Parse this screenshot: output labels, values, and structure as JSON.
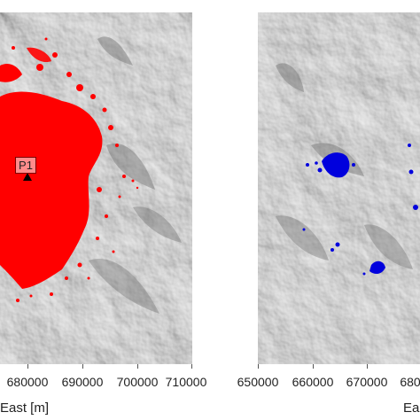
{
  "left_panel": {
    "x_ticks": [
      "680000",
      "690000",
      "700000",
      "710000"
    ],
    "x_axis_title": "East [m]",
    "marker_label": "P1",
    "overlay_color": "#ff0000"
  },
  "right_panel": {
    "x_ticks": [
      "650000",
      "660000",
      "670000",
      "680"
    ],
    "x_axis_title": "Ea",
    "overlay_color": "#0000dd"
  },
  "background": "grey hillshade relief"
}
